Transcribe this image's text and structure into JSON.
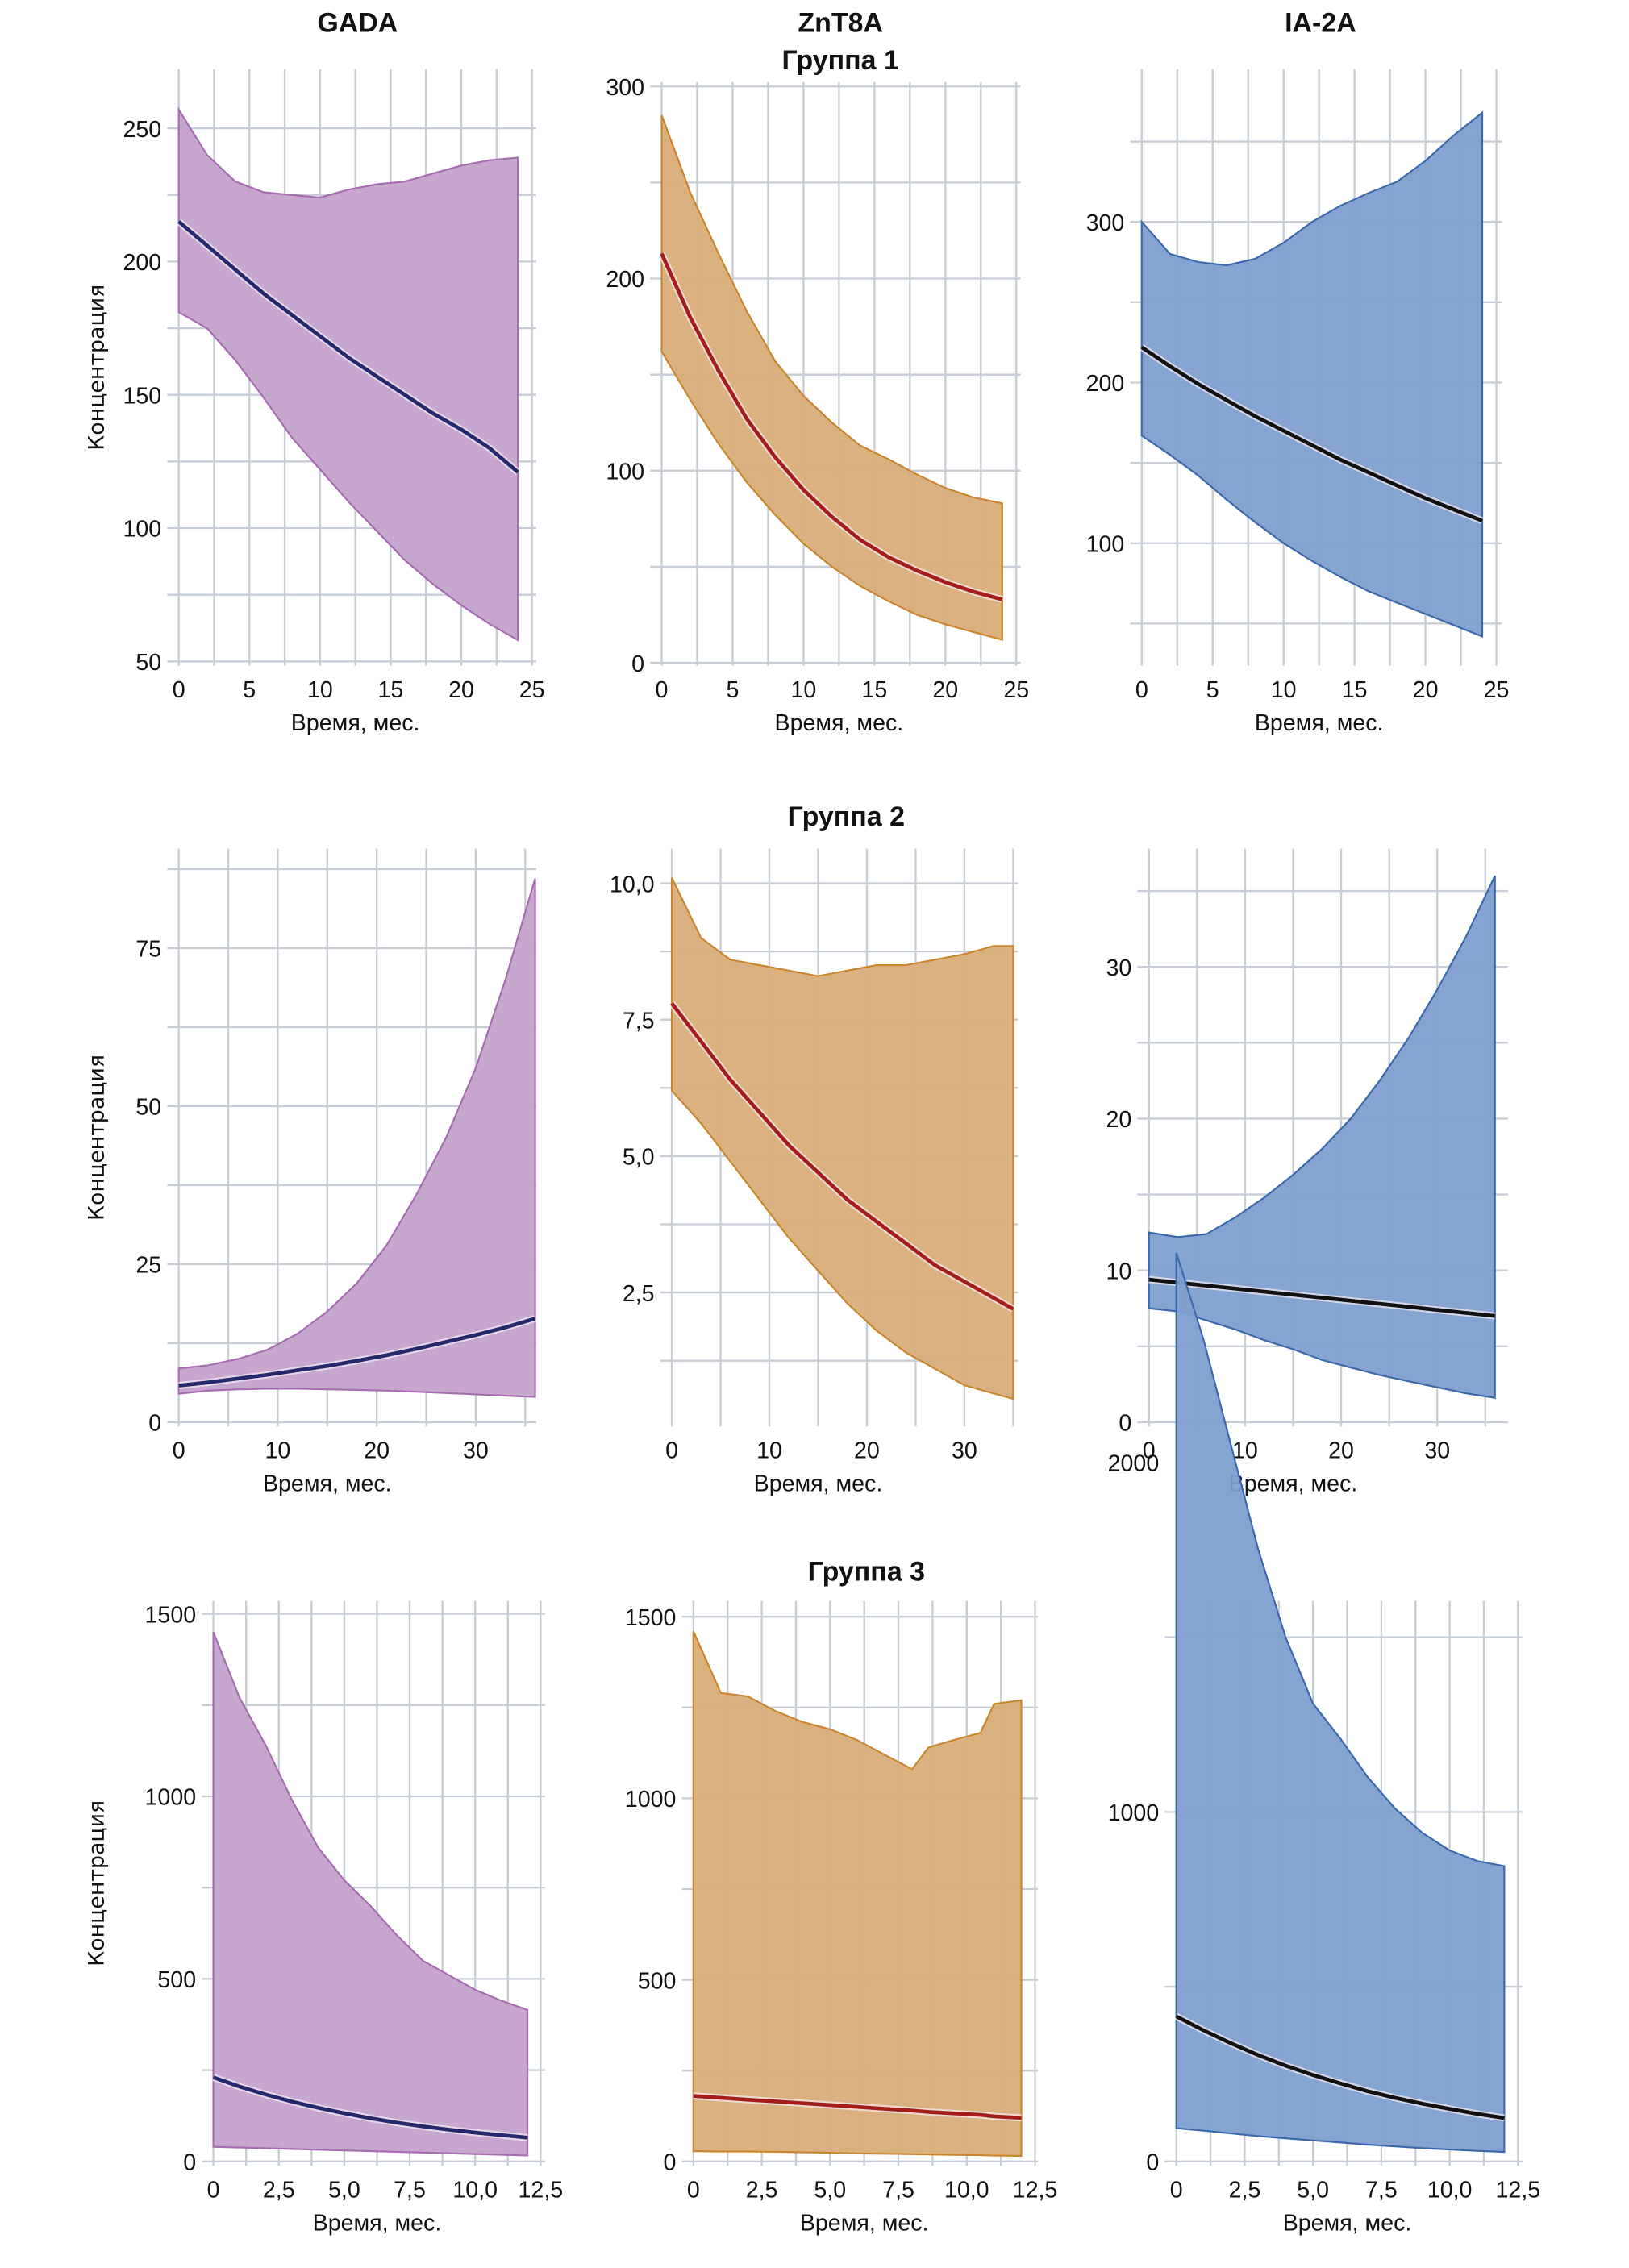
{
  "figure": {
    "column_titles": [
      "GADA",
      "ZnT8A",
      "IA-2A"
    ],
    "group_titles": [
      "Группа 1",
      "Группа 2",
      "Группа 3"
    ],
    "ylabel": "Концентрация",
    "xlabel": "Время, мес."
  },
  "colors": {
    "GADA": {
      "fill": "#c4a2cb",
      "edge": "#a66bb0",
      "line": "#25286b"
    },
    "ZnT8A": {
      "fill": "#d9ae78",
      "edge": "#c8852e",
      "line": "#a41d1d"
    },
    "IA-2A": {
      "fill": "#809fcf",
      "edge": "#3b67ab",
      "line": "#111111"
    },
    "grid": "#c6cdd4"
  },
  "chart_data": [
    {
      "type": "area",
      "group": "Группа 1",
      "marker": "GADA",
      "title": "GADA",
      "xlabel": "Время, мес.",
      "ylabel": "Концентрация",
      "xlim": [
        0,
        25
      ],
      "ylim": [
        50,
        260
      ],
      "xticks": [
        0,
        5,
        10,
        15,
        20,
        25
      ],
      "xtick_labels": [
        "0",
        "5",
        "10",
        "15",
        "20",
        "25"
      ],
      "yticks": [
        50,
        100,
        150,
        200,
        250
      ],
      "ytick_labels": [
        "50",
        "100",
        "150",
        "200",
        "250"
      ],
      "minor_yticks": [
        75,
        125,
        175,
        225
      ],
      "minor_xticks": [
        2.5,
        7.5,
        12.5,
        17.5,
        22.5
      ],
      "x": [
        0,
        2,
        4,
        6,
        8,
        10,
        12,
        14,
        16,
        18,
        20,
        22,
        24
      ],
      "upper": [
        257,
        240,
        230,
        226,
        225,
        224,
        227,
        229,
        230,
        233,
        236,
        238,
        239
      ],
      "lower": [
        181,
        175,
        163,
        149,
        134,
        122,
        110,
        99,
        88,
        79,
        71,
        64,
        58
      ],
      "mean": [
        215,
        206,
        197,
        188,
        180,
        172,
        164,
        157,
        150,
        143,
        137,
        130,
        121
      ],
      "grid": true
    },
    {
      "type": "area",
      "group": "Группа 1",
      "marker": "ZnT8A",
      "title": "ZnT8A",
      "xlabel": "Время, мес.",
      "ylabel": "",
      "xlim": [
        0,
        25
      ],
      "ylim": [
        0,
        300
      ],
      "xticks": [
        0,
        5,
        10,
        15,
        20,
        25
      ],
      "xtick_labels": [
        "0",
        "5",
        "10",
        "15",
        "20",
        "25"
      ],
      "yticks": [
        0,
        100,
        200,
        300
      ],
      "ytick_labels": [
        "0",
        "100",
        "200",
        "300"
      ],
      "minor_yticks": [
        50,
        150,
        250
      ],
      "minor_xticks": [
        2.5,
        7.5,
        12.5,
        17.5,
        22.5
      ],
      "x": [
        0,
        2,
        4,
        6,
        8,
        10,
        12,
        14,
        16,
        18,
        20,
        22,
        24
      ],
      "upper": [
        285,
        245,
        213,
        183,
        157,
        139,
        125,
        113,
        106,
        98,
        91,
        86,
        83
      ],
      "lower": [
        162,
        137,
        114,
        94,
        77,
        62,
        50,
        40,
        32,
        25,
        20,
        16,
        12
      ],
      "mean": [
        213,
        180,
        152,
        127,
        107,
        90,
        76,
        64,
        55,
        48,
        42,
        37,
        33
      ],
      "grid": true
    },
    {
      "type": "area",
      "group": "Группа 1",
      "marker": "IA-2A",
      "title": "IA-2A",
      "xlabel": "Время, мес.",
      "ylabel": "",
      "xlim": [
        0,
        25
      ],
      "ylim": [
        25,
        385
      ],
      "xticks": [
        0,
        5,
        10,
        15,
        20,
        25
      ],
      "xtick_labels": [
        "0",
        "5",
        "10",
        "15",
        "20",
        "25"
      ],
      "yticks": [
        100,
        200,
        300
      ],
      "ytick_labels": [
        "100",
        "200",
        "300"
      ],
      "minor_yticks": [
        50,
        150,
        250,
        350
      ],
      "minor_xticks": [
        2.5,
        7.5,
        12.5,
        17.5,
        22.5
      ],
      "x": [
        0,
        2,
        4,
        6,
        8,
        10,
        12,
        14,
        16,
        18,
        20,
        22,
        24
      ],
      "upper": [
        300,
        280,
        275,
        273,
        277,
        287,
        300,
        310,
        318,
        325,
        338,
        354,
        368
      ],
      "lower": [
        167,
        155,
        142,
        127,
        113,
        100,
        89,
        79,
        70,
        63,
        56,
        49,
        42
      ],
      "mean": [
        222,
        210,
        199,
        189,
        179,
        170,
        161,
        152,
        144,
        136,
        128,
        121,
        114
      ],
      "grid": true
    },
    {
      "type": "area",
      "group": "Группа 2",
      "marker": "GADA",
      "title": "",
      "xlabel": "Время, мес.",
      "ylabel": "Концентрация",
      "xlim": [
        0,
        37.5
      ],
      "ylim": [
        0,
        90
      ],
      "xticks": [
        0,
        10,
        20,
        30
      ],
      "xtick_labels": [
        "0",
        "10",
        "20",
        "30"
      ],
      "yticks": [
        0,
        25,
        50,
        75
      ],
      "ytick_labels": [
        "0",
        "25",
        "50",
        "75"
      ],
      "minor_yticks": [
        12.5,
        37.5,
        62.5,
        87.5
      ],
      "minor_xticks": [
        5,
        15,
        25,
        35
      ],
      "x": [
        0,
        3,
        6,
        9,
        12,
        15,
        18,
        21,
        24,
        27,
        30,
        33,
        36
      ],
      "upper": [
        8.5,
        9,
        10,
        11.5,
        14,
        17.5,
        22,
        28,
        36,
        45,
        56,
        70,
        86
      ],
      "lower": [
        4.5,
        5,
        5.2,
        5.3,
        5.3,
        5.2,
        5.1,
        5,
        4.8,
        4.6,
        4.4,
        4.2,
        4
      ],
      "mean": [
        5.8,
        6.3,
        6.9,
        7.5,
        8.2,
        8.9,
        9.7,
        10.6,
        11.6,
        12.7,
        13.8,
        15,
        16.4
      ],
      "grid": true
    },
    {
      "type": "area",
      "group": "Группа 2",
      "marker": "ZnT8A",
      "title": "",
      "xlabel": "Время, мес.",
      "ylabel": "",
      "xlim": [
        0,
        36.5
      ],
      "ylim": [
        0,
        10.5
      ],
      "xticks": [
        0,
        10,
        20,
        30
      ],
      "xtick_labels": [
        "0",
        "10",
        "20",
        "30"
      ],
      "yticks": [
        2.5,
        5.0,
        7.5,
        10.0
      ],
      "ytick_labels": [
        "2,5",
        "5,0",
        "7,5",
        "10,0"
      ],
      "minor_yticks": [
        1.25,
        3.75,
        6.25,
        8.75
      ],
      "minor_xticks": [
        5,
        15,
        25,
        35
      ],
      "x": [
        0,
        3,
        6,
        9,
        12,
        15,
        18,
        21,
        24,
        27,
        30,
        33,
        35
      ],
      "upper": [
        10.1,
        9.0,
        8.6,
        8.5,
        8.4,
        8.3,
        8.4,
        8.5,
        8.5,
        8.6,
        8.7,
        8.85,
        8.85
      ],
      "lower": [
        6.2,
        5.6,
        4.9,
        4.2,
        3.5,
        2.9,
        2.3,
        1.8,
        1.4,
        1.1,
        0.8,
        0.65,
        0.55
      ],
      "mean": [
        7.8,
        7.1,
        6.4,
        5.8,
        5.2,
        4.7,
        4.2,
        3.8,
        3.4,
        3.0,
        2.7,
        2.4,
        2.2
      ],
      "grid": true
    },
    {
      "type": "area",
      "group": "Группа 2",
      "marker": "IA-2A",
      "title": "",
      "xlabel": "Время, мес.",
      "ylabel": "",
      "xlim": [
        0,
        37.5
      ],
      "ylim": [
        0,
        38
      ],
      "xticks": [
        0,
        10,
        20,
        30
      ],
      "xtick_labels": [
        "0",
        "10",
        "20",
        "30"
      ],
      "yticks": [
        0,
        10,
        20,
        30
      ],
      "ytick_labels": [
        "0",
        "10",
        "20",
        "30"
      ],
      "minor_yticks": [
        5,
        15,
        25,
        35
      ],
      "minor_xticks": [
        5,
        15,
        25,
        35
      ],
      "x": [
        0,
        3,
        6,
        9,
        12,
        15,
        18,
        21,
        24,
        27,
        30,
        33,
        36
      ],
      "upper": [
        12.5,
        12.2,
        12.4,
        13.5,
        14.8,
        16.3,
        18,
        20,
        22.5,
        25.3,
        28.5,
        32,
        36
      ],
      "lower": [
        7.5,
        7.3,
        6.7,
        6.1,
        5.4,
        4.8,
        4.1,
        3.6,
        3.1,
        2.7,
        2.3,
        1.9,
        1.6
      ],
      "mean": [
        9.4,
        9.2,
        9.0,
        8.8,
        8.6,
        8.4,
        8.2,
        8.0,
        7.8,
        7.6,
        7.4,
        7.2,
        7.0
      ],
      "grid": true
    },
    {
      "type": "area",
      "group": "Группа 3",
      "marker": "GADA",
      "title": "",
      "xlabel": "Время, мес.",
      "ylabel": "Концентрация",
      "xlim": [
        0,
        12.5
      ],
      "ylim": [
        0,
        1500
      ],
      "xticks": [
        0,
        2.5,
        5.0,
        7.5,
        10.0,
        12.5
      ],
      "xtick_labels": [
        "0",
        "2,5",
        "5,0",
        "7,5",
        "10,0",
        "12,5"
      ],
      "yticks": [
        0,
        500,
        1000,
        1500
      ],
      "ytick_labels": [
        "0",
        "500",
        "1000",
        "1500"
      ],
      "minor_yticks": [
        250,
        750,
        1250
      ],
      "minor_xticks": [
        1.25,
        3.75,
        6.25,
        8.75,
        11.25
      ],
      "x": [
        0,
        1,
        2,
        3,
        4,
        5,
        6,
        7,
        8,
        9,
        10,
        11,
        12
      ],
      "upper": [
        1450,
        1270,
        1140,
        990,
        860,
        770,
        700,
        620,
        550,
        510,
        470,
        440,
        415
      ],
      "lower": [
        40,
        38,
        36,
        34,
        32,
        30,
        28,
        26,
        24,
        22,
        20,
        18,
        16
      ],
      "mean": [
        230,
        205,
        183,
        164,
        147,
        132,
        118,
        106,
        96,
        87,
        79,
        72,
        65
      ],
      "grid": true
    },
    {
      "type": "area",
      "group": "Группа 3",
      "marker": "ZnT8A",
      "title": "",
      "xlabel": "Время, мес.",
      "ylabel": "",
      "xlim": [
        0,
        12.5
      ],
      "ylim": [
        0,
        1500
      ],
      "xticks": [
        0,
        2.5,
        5.0,
        7.5,
        10.0,
        12.5
      ],
      "xtick_labels": [
        "0",
        "2,5",
        "5,0",
        "7,5",
        "10,0",
        "12,5"
      ],
      "yticks": [
        0,
        500,
        1000,
        1500
      ],
      "ytick_labels": [
        "0",
        "500",
        "1000",
        "1500"
      ],
      "minor_yticks": [
        250,
        750,
        1250
      ],
      "minor_xticks": [
        1.25,
        3.75,
        6.25,
        8.75,
        11.25
      ],
      "x": [
        0,
        1,
        2,
        3,
        4,
        5,
        6,
        7,
        8,
        8.6,
        9.5,
        10.5,
        11,
        12
      ],
      "upper": [
        1460,
        1290,
        1280,
        1240,
        1210,
        1190,
        1160,
        1120,
        1080,
        1140,
        1160,
        1180,
        1260,
        1270
      ],
      "lower": [
        28,
        27,
        27,
        26,
        25,
        24,
        22,
        21,
        20,
        19,
        18,
        17,
        16,
        15
      ],
      "mean": [
        180,
        175,
        170,
        165,
        160,
        155,
        150,
        145,
        140,
        136,
        132,
        128,
        124,
        120
      ],
      "grid": true
    },
    {
      "type": "area",
      "group": "Группа 3",
      "marker": "IA-2A",
      "title": "",
      "xlabel": "Время, мес.",
      "ylabel": "",
      "xlim": [
        0,
        12.5
      ],
      "ylim": [
        0,
        2700
      ],
      "xticks": [
        0,
        2.5,
        5.0,
        7.5,
        10.0,
        12.5
      ],
      "xtick_labels": [
        "0",
        "2,5",
        "5,0",
        "7,5",
        "10,0",
        "12,5"
      ],
      "yticks": [
        0,
        1000,
        2000
      ],
      "ytick_labels": [
        "0",
        "1000",
        "2000"
      ],
      "minor_yticks": [
        500,
        1500,
        2500
      ],
      "minor_xticks": [
        1.25,
        3.75,
        6.25,
        8.75,
        11.25
      ],
      "x": [
        0,
        1,
        2,
        3,
        4,
        5,
        6,
        7,
        8,
        9,
        10,
        11,
        12
      ],
      "upper": [
        2600,
        2350,
        2050,
        1750,
        1500,
        1310,
        1210,
        1100,
        1010,
        940,
        890,
        860,
        845
      ],
      "lower": [
        95,
        88,
        80,
        72,
        66,
        60,
        54,
        48,
        43,
        38,
        34,
        30,
        27
      ],
      "mean": [
        415,
        375,
        338,
        304,
        274,
        247,
        223,
        201,
        182,
        165,
        150,
        136,
        124
      ],
      "grid": true
    }
  ]
}
